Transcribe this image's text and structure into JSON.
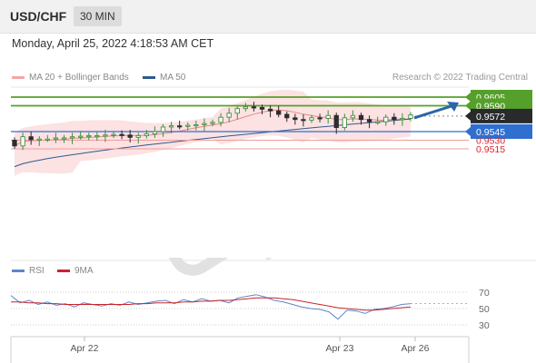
{
  "header": {
    "symbol": "USD/CHF",
    "timeframe": "30 MIN"
  },
  "datetime": "Monday, April 25, 2022 4:18:53 AM CET",
  "legend": {
    "bb": "MA 20 + Bollinger Bands",
    "ma50": "MA 50",
    "rsi": "RSI",
    "rsi_ma": "9MA"
  },
  "credit": "Research © 2022 Trading Central",
  "colors": {
    "bb": "#f5a6a6",
    "ma50": "#2e5a8f",
    "resistance": "#55a02a",
    "support_line": "#2f6fd0",
    "support_text": "#d8262f",
    "current": "#2a2a2a",
    "rsi": "#5b86c8",
    "rsi_ma": "#c8242c",
    "arrow": "#2b66a8"
  },
  "chart_data": [
    {
      "type": "line",
      "title": "USD/CHF",
      "x_ticks": [
        "Apr 22",
        "Apr 23",
        "Apr 26"
      ],
      "levels": {
        "resistance": [
          0.9605,
          0.959
        ],
        "current": 0.9572,
        "pivot": 0.9545,
        "support": [
          0.953,
          0.9515
        ]
      },
      "level_labels": [
        "0.9605",
        "0.9590",
        "0.9572",
        "0.9545",
        "0.9530",
        "0.9515"
      ],
      "close_series": [
        0.952,
        0.9536,
        0.9531,
        0.9532,
        0.9532,
        0.9534,
        0.9534,
        0.9536,
        0.9537,
        0.9538,
        0.9538,
        0.9539,
        0.954,
        0.9539,
        0.9535,
        0.9538,
        0.9541,
        0.9545,
        0.9553,
        0.9555,
        0.9554,
        0.9556,
        0.9557,
        0.9559,
        0.9561,
        0.957,
        0.9577,
        0.9585,
        0.9588,
        0.9587,
        0.9584,
        0.9581,
        0.9575,
        0.9569,
        0.9566,
        0.9565,
        0.9569,
        0.9568,
        0.9573,
        0.9552,
        0.9569,
        0.9573,
        0.9566,
        0.9562,
        0.9562,
        0.957,
        0.9566,
        0.9568,
        0.9574
      ]
    },
    {
      "type": "line",
      "title": "RSI",
      "y_ticks": [
        70,
        50,
        30
      ],
      "series": [
        {
          "name": "RSI",
          "values": [
            66,
            57,
            60,
            55,
            58,
            54,
            56,
            52,
            57,
            55,
            53,
            56,
            54,
            58,
            55,
            57,
            59,
            60,
            56,
            61,
            58,
            62,
            59,
            60,
            57,
            63,
            65,
            67,
            64,
            60,
            58,
            55,
            52,
            50,
            49,
            46,
            37,
            48,
            47,
            44,
            49,
            50,
            52,
            55,
            56
          ]
        },
        {
          "name": "9MA",
          "values": [
            58,
            58,
            57,
            57,
            56,
            56,
            55,
            55,
            55,
            55,
            55,
            55,
            55,
            55,
            56,
            56,
            57,
            57,
            57,
            58,
            58,
            59,
            59,
            60,
            60,
            61,
            62,
            63,
            63,
            63,
            62,
            61,
            59,
            57,
            55,
            53,
            51,
            50,
            49,
            48,
            48,
            49,
            50,
            51,
            52
          ]
        }
      ]
    }
  ]
}
